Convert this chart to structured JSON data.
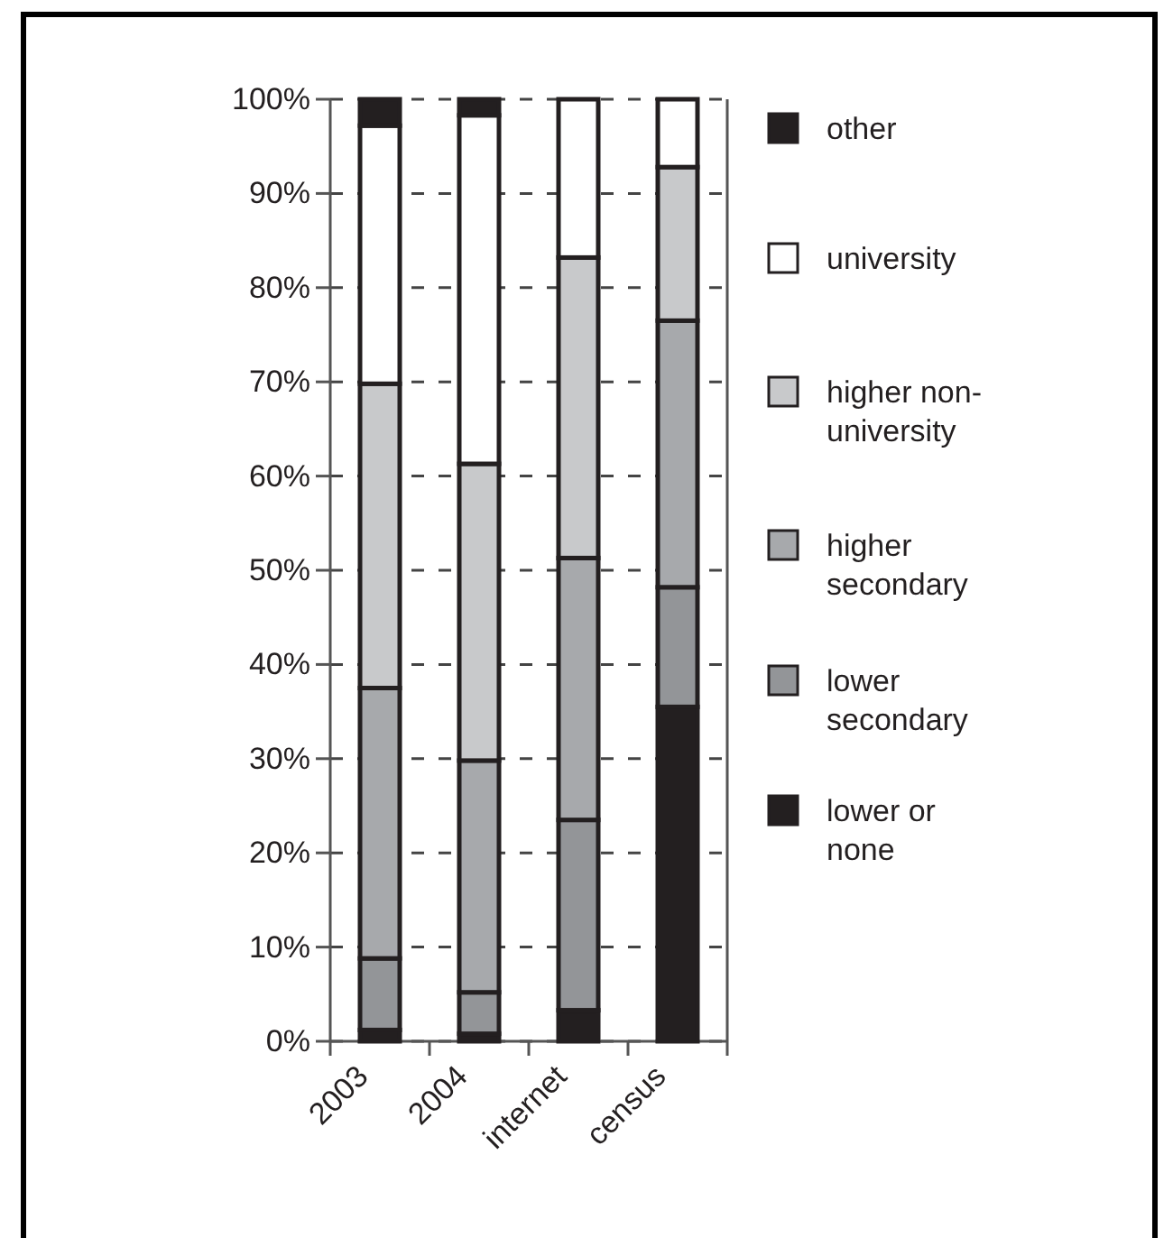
{
  "chart_data": {
    "type": "bar",
    "stacked": true,
    "categories": [
      "2003",
      "2004",
      "internet",
      "census"
    ],
    "series": [
      {
        "name": "lower or none",
        "color": "#231f20",
        "values": [
          1.2,
          0.8,
          3.3,
          35.5
        ]
      },
      {
        "name": "lower secondary",
        "color": "#939598",
        "values": [
          7.6,
          4.4,
          20.2,
          12.7
        ]
      },
      {
        "name": "higher secondary",
        "color": "#a7a9ac",
        "values": [
          28.7,
          24.6,
          27.8,
          28.3
        ]
      },
      {
        "name": "higher non-university",
        "color": "#c8c9cb",
        "values": [
          32.3,
          31.5,
          31.9,
          16.3
        ]
      },
      {
        "name": "university",
        "color": "#ffffff",
        "values": [
          27.4,
          37.0,
          16.8,
          7.2
        ]
      },
      {
        "name": "other",
        "color": "#231f20",
        "values": [
          2.8,
          1.7,
          0,
          0
        ]
      }
    ],
    "ylim": [
      0,
      100
    ],
    "yticks": [
      {
        "value": 0,
        "label": "0%"
      },
      {
        "value": 10,
        "label": "10%"
      },
      {
        "value": 20,
        "label": "20%"
      },
      {
        "value": 30,
        "label": "30%"
      },
      {
        "value": 40,
        "label": "40%"
      },
      {
        "value": 50,
        "label": "50%"
      },
      {
        "value": 60,
        "label": "60%"
      },
      {
        "value": 70,
        "label": "70%"
      },
      {
        "value": 80,
        "label": "80%"
      },
      {
        "value": 90,
        "label": "90%"
      },
      {
        "value": 100,
        "label": "100%"
      }
    ],
    "grid": "y",
    "legend": "right"
  }
}
